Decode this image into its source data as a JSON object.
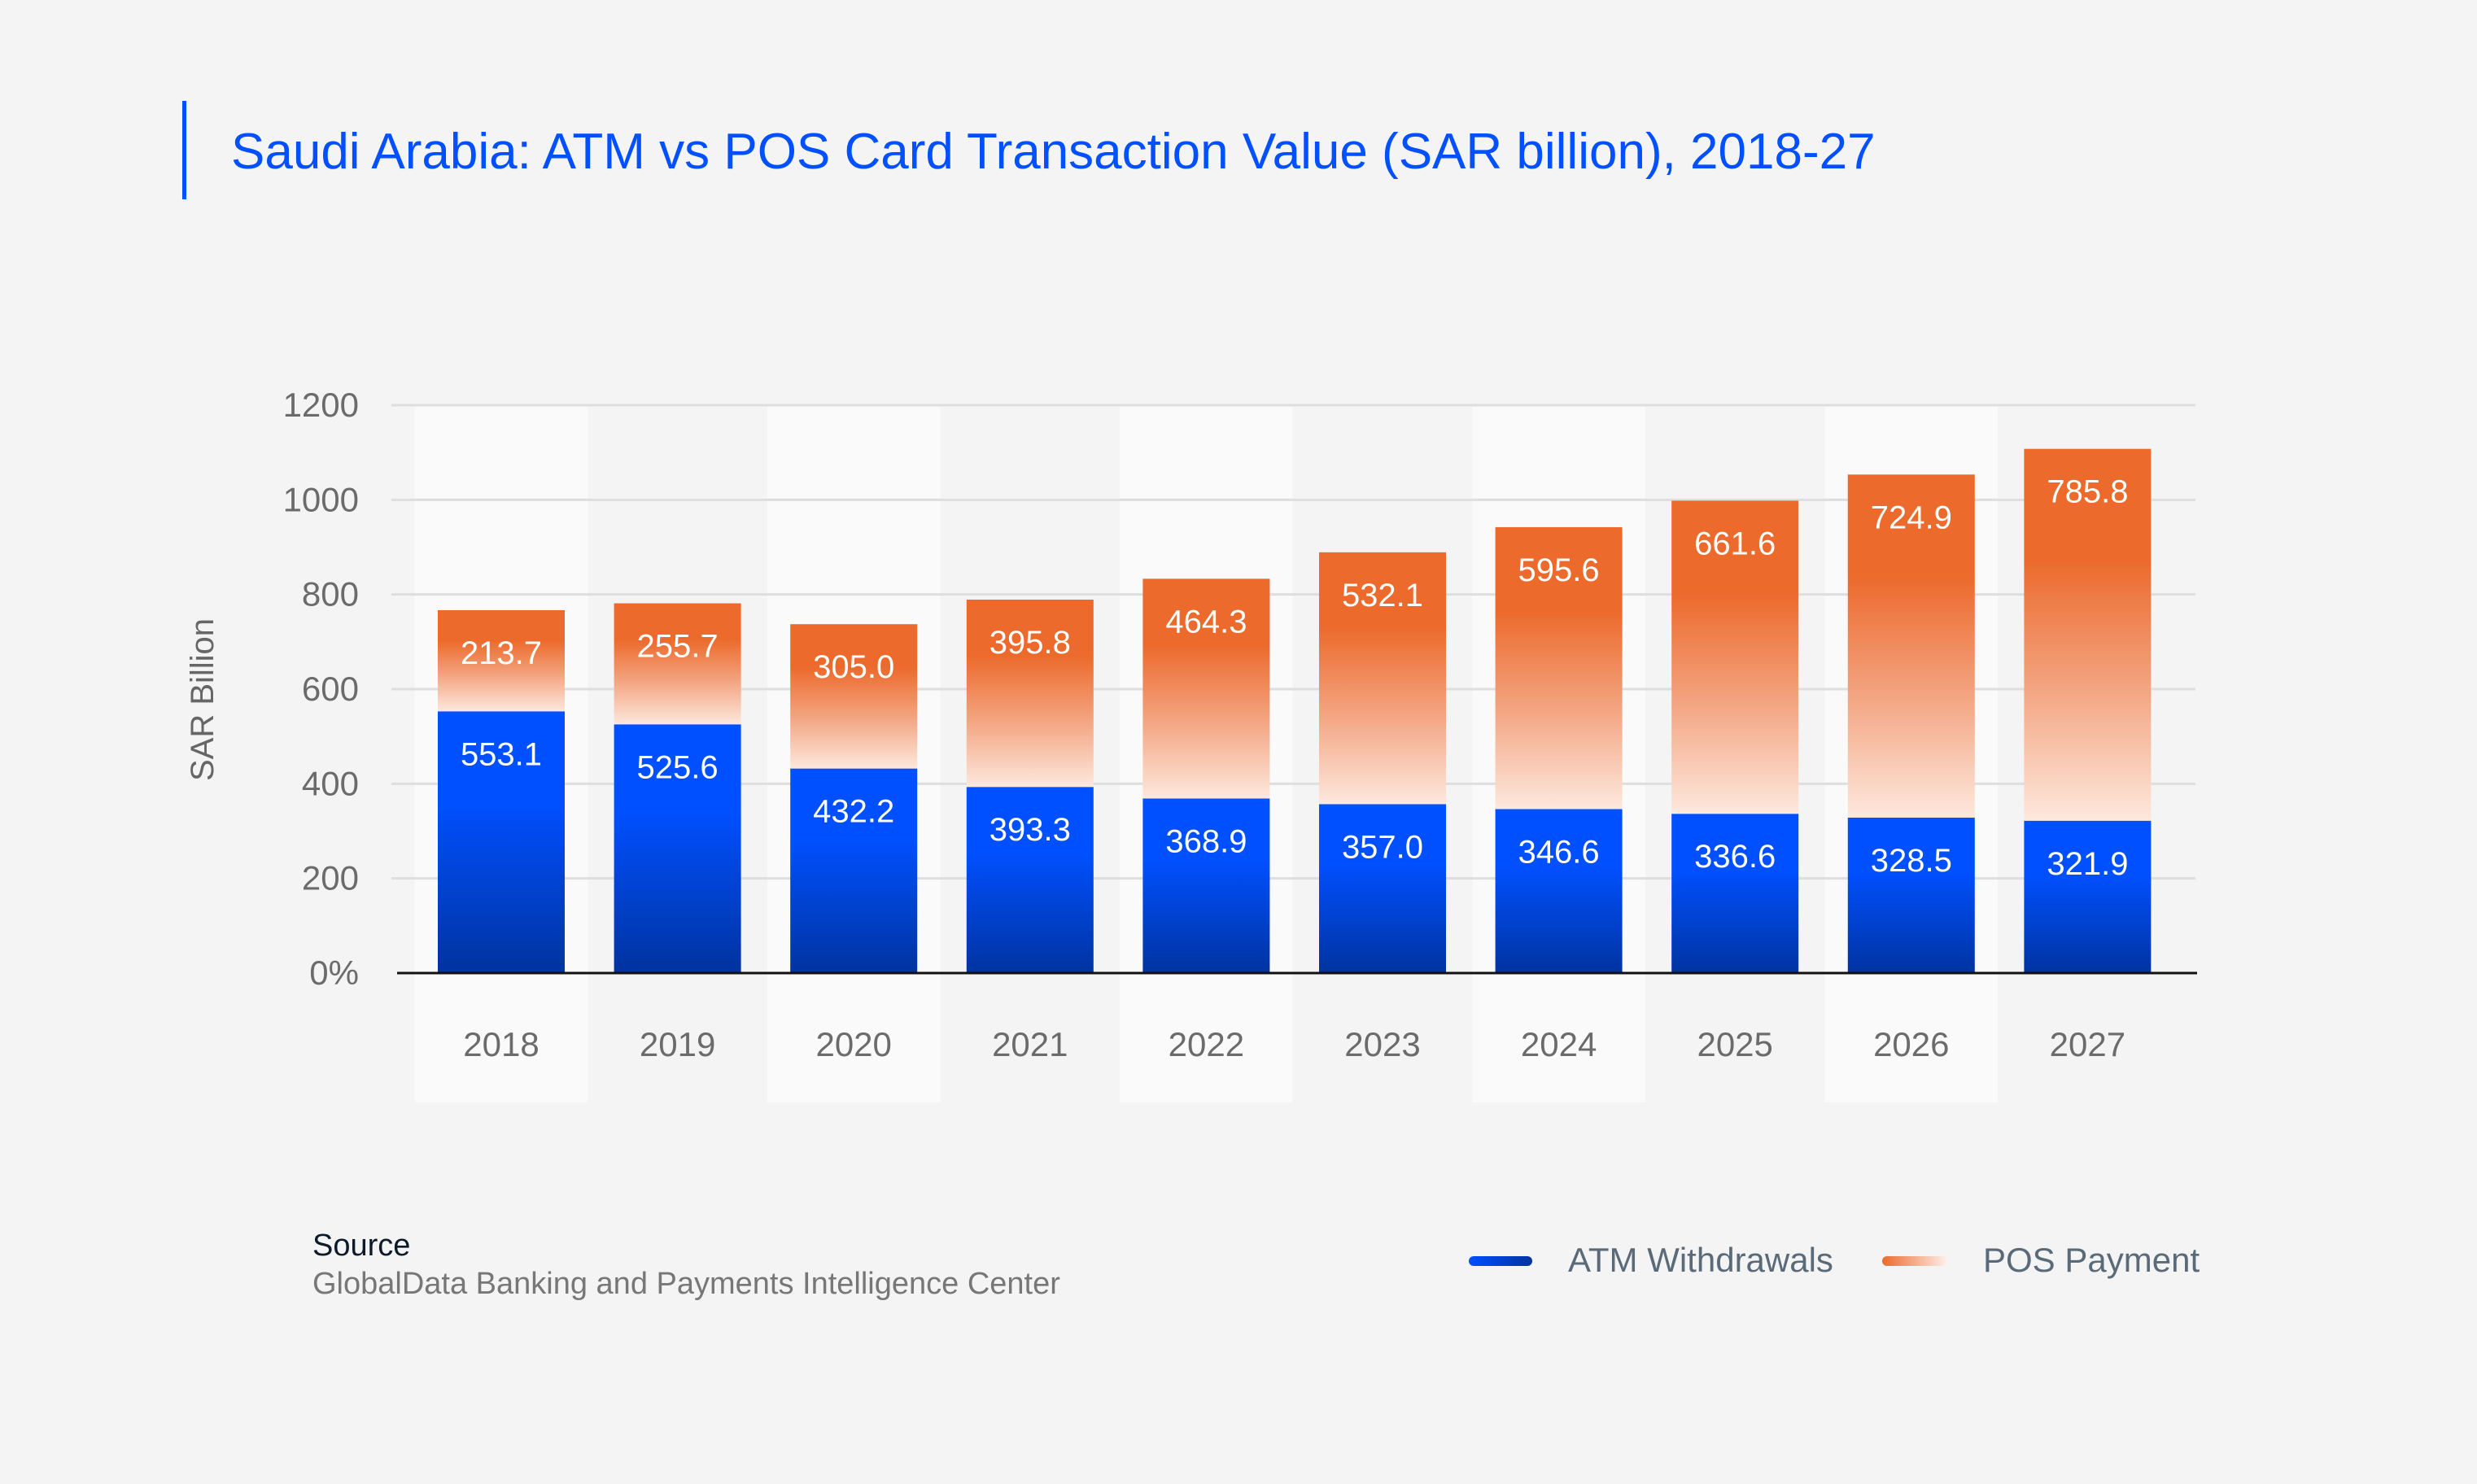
{
  "colors": {
    "background": "#f4f4f4",
    "accent": "#0050ff",
    "atm_top": "#0050ff",
    "atm_bottom": "#0033a0",
    "pos_top": "#ec6a2c",
    "pos_bottom": "#fde8dd"
  },
  "chart_data": {
    "type": "bar",
    "stacked": true,
    "title": "Saudi Arabia: ATM vs POS Card Transaction Value (SAR billion), 2018-27",
    "ylabel": "SAR Billion",
    "xlabel": "",
    "ylim": [
      0,
      1200
    ],
    "yticks": [
      "0%",
      "200",
      "400",
      "600",
      "800",
      "1000",
      "1200"
    ],
    "grid": true,
    "legend_position": "bottom-right",
    "categories": [
      "2018",
      "2019",
      "2020",
      "2021",
      "2022",
      "2023",
      "2024",
      "2025",
      "2026",
      "2027"
    ],
    "series": [
      {
        "name": "ATM Withdrawals",
        "values": [
          553.1,
          525.6,
          432.2,
          393.3,
          368.9,
          357.0,
          346.6,
          336.6,
          328.5,
          321.9
        ],
        "labels": [
          "553.1",
          "525.6",
          "432.2",
          "393.3",
          "368.9",
          "357.0",
          "346.6",
          "336.6",
          "328.5",
          "321.9"
        ]
      },
      {
        "name": "POS Payment",
        "values": [
          213.7,
          255.7,
          305.0,
          395.8,
          464.3,
          532.1,
          595.6,
          661.6,
          724.9,
          785.8
        ],
        "labels": [
          "213.7",
          "255.7",
          "305.0",
          "395.8",
          "464.3",
          "532.1",
          "595.6",
          "661.6",
          "724.9",
          "785.8"
        ]
      }
    ]
  },
  "source": {
    "heading": "Source",
    "text": "GlobalData Banking and Payments Intelligence Center"
  }
}
